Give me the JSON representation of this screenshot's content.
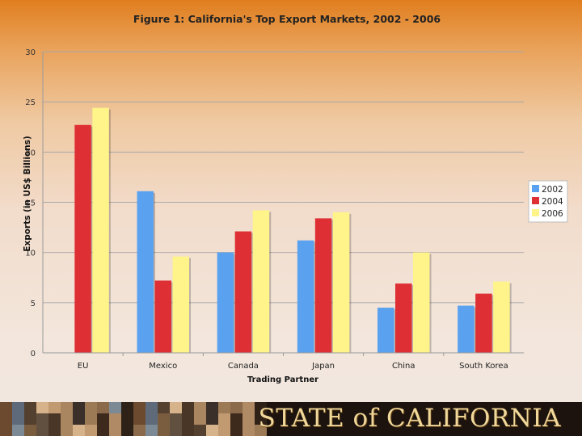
{
  "chart_data": {
    "type": "bar",
    "title": "Figure 1: California's Top Export Markets, 2002 - 2006",
    "xlabel": "Trading Partner",
    "ylabel": "Exports (in US$ Billions)",
    "ylim": [
      0,
      30
    ],
    "yticks": [
      "0",
      "5",
      "10",
      "15",
      "20",
      "25",
      "30"
    ],
    "grid": "horizontal",
    "legend_position": "right",
    "categories": [
      "EU",
      "Mexico",
      "Canada",
      "Japan",
      "China",
      "South Korea"
    ],
    "series": [
      {
        "name": "2002",
        "color": "#5aa2f0",
        "values": [
          0,
          16.1,
          10.0,
          11.2,
          4.5,
          4.7
        ]
      },
      {
        "name": "2004",
        "color": "#de2f35",
        "values": [
          22.7,
          7.2,
          12.1,
          13.4,
          6.9,
          5.9
        ]
      },
      {
        "name": "2006",
        "color": "#fff48a",
        "values": [
          24.4,
          9.6,
          14.2,
          14.0,
          10.0,
          7.1
        ]
      }
    ]
  },
  "banner": {
    "title": "STATE of CALIFORNIA"
  }
}
